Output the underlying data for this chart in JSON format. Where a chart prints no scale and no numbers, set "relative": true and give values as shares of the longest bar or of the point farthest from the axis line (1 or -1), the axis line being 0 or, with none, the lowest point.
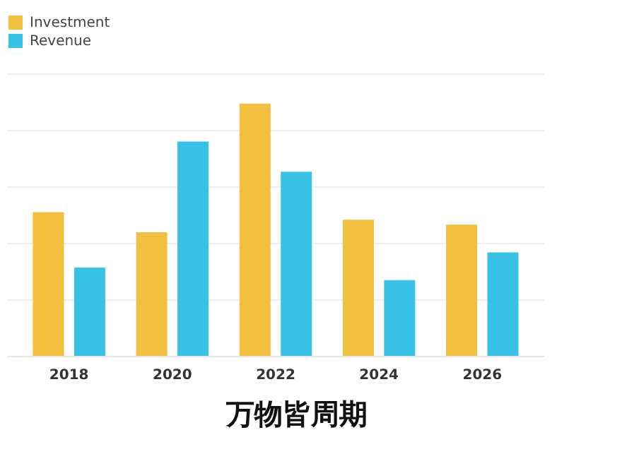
{
  "chart_data": {
    "type": "bar",
    "relative": true,
    "categories": [
      "2018",
      "2020",
      "2022",
      "2024",
      "2026"
    ],
    "series": [
      {
        "name": "Investment",
        "color": "#f2bf3e",
        "values": [
          0.57,
          0.49,
          1,
          0.54,
          0.52
        ]
      },
      {
        "name": "Revenue",
        "color": "#38c2e6",
        "values": [
          0.35,
          0.85,
          0.73,
          0.3,
          0.41
        ]
      }
    ],
    "grid": "y",
    "legend": "top left",
    "annotations": [
      "万物皆周期"
    ]
  }
}
